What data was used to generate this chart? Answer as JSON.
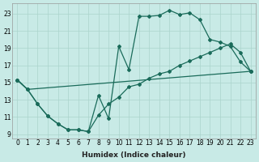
{
  "xlabel": "Humidex (Indice chaleur)",
  "xlim": [
    -0.5,
    23.5
  ],
  "ylim": [
    8.5,
    24.2
  ],
  "yticks": [
    9,
    11,
    13,
    15,
    17,
    19,
    21,
    23
  ],
  "xticks": [
    0,
    1,
    2,
    3,
    4,
    5,
    6,
    7,
    8,
    9,
    10,
    11,
    12,
    13,
    14,
    15,
    16,
    17,
    18,
    19,
    20,
    21,
    22,
    23
  ],
  "bg_color": "#c8eae6",
  "line_color": "#1a6b5a",
  "grid_color": "#aad4cc",
  "curve1_x": [
    0,
    1,
    2,
    3,
    4,
    5,
    6,
    7,
    8,
    9,
    10,
    11,
    12,
    13,
    14,
    15,
    16,
    17,
    18,
    19,
    20,
    21,
    22,
    23
  ],
  "curve1_y": [
    15.3,
    14.2,
    12.5,
    11.1,
    10.2,
    9.5,
    9.5,
    9.3,
    13.5,
    10.8,
    19.2,
    16.5,
    22.7,
    22.7,
    22.8,
    23.4,
    22.9,
    23.1,
    22.3,
    20.0,
    19.7,
    19.2,
    17.4,
    16.3
  ],
  "curve2_x": [
    0,
    1,
    2,
    3,
    4,
    5,
    6,
    7,
    8,
    9,
    10,
    11,
    12,
    13,
    14,
    15,
    16,
    17,
    18,
    19,
    20,
    21,
    22,
    23
  ],
  "curve2_y": [
    15.3,
    14.2,
    12.5,
    11.1,
    10.2,
    9.5,
    9.5,
    9.3,
    11.2,
    12.5,
    13.3,
    14.5,
    14.8,
    15.5,
    16.0,
    16.3,
    17.0,
    17.5,
    18.0,
    18.5,
    19.0,
    19.5,
    18.5,
    16.3
  ],
  "curve3_x": [
    0,
    1,
    23
  ],
  "curve3_y": [
    15.3,
    14.2,
    16.3
  ]
}
